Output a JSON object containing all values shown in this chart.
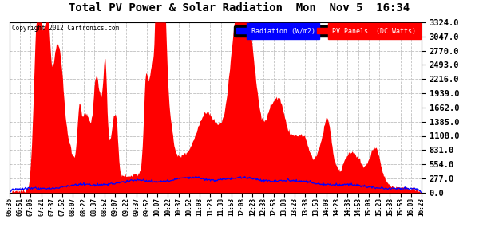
{
  "title": "Total PV Power & Solar Radiation  Mon  Nov 5  16:34",
  "copyright": "Copyright 2012 Cartronics.com",
  "legend_radiation": "Radiation (W/m2)",
  "legend_pv": "PV Panels  (DC Watts)",
  "ymax": 3324.0,
  "yticks": [
    0.0,
    277.0,
    554.0,
    831.0,
    1108.0,
    1385.0,
    1662.0,
    1939.0,
    2216.0,
    2493.0,
    2770.0,
    3047.0,
    3324.0
  ],
  "color_radiation": "#0000ff",
  "color_pv_fill": "#ff0000",
  "background": "#ffffff",
  "grid_color": "#c0c0c0",
  "x_labels": [
    "06:36",
    "06:51",
    "07:06",
    "07:21",
    "07:37",
    "07:52",
    "08:07",
    "08:22",
    "08:37",
    "08:52",
    "09:07",
    "09:22",
    "09:37",
    "09:52",
    "10:07",
    "10:22",
    "10:37",
    "10:52",
    "11:08",
    "11:23",
    "11:38",
    "11:53",
    "12:08",
    "12:23",
    "12:38",
    "12:53",
    "13:08",
    "13:23",
    "13:38",
    "13:53",
    "14:08",
    "14:23",
    "14:38",
    "14:53",
    "15:08",
    "15:23",
    "15:38",
    "15:53",
    "16:08",
    "16:23"
  ],
  "n_fine": 600
}
